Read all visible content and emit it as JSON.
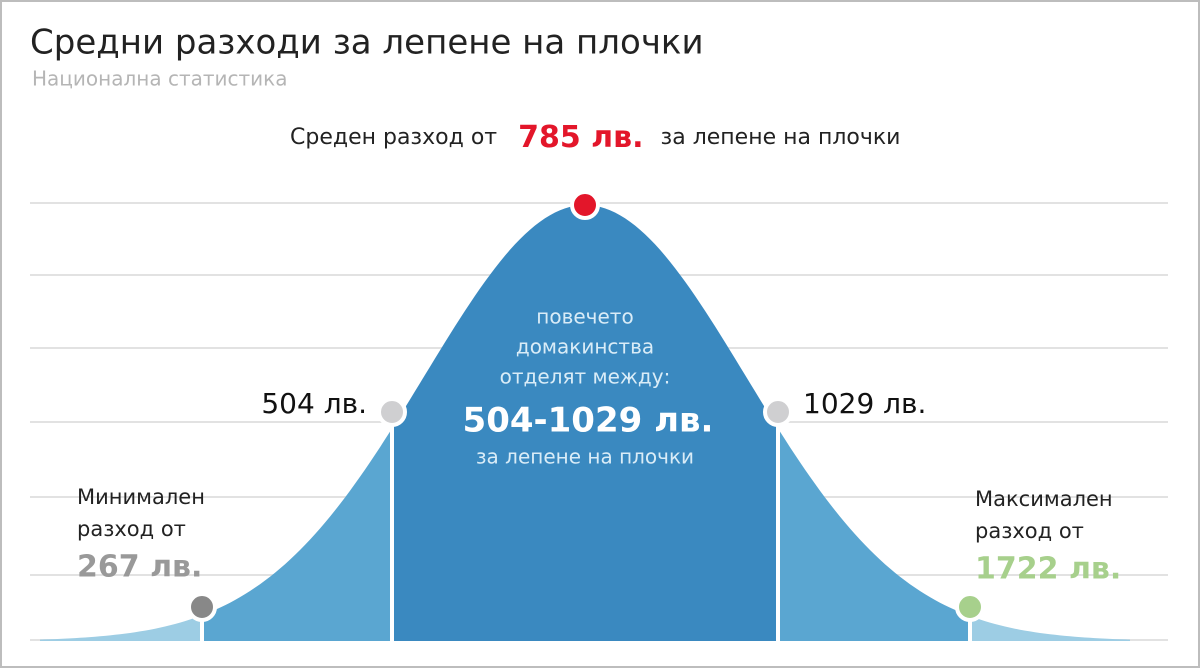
{
  "header": {
    "title": "Средни разходи за лепене на плочки",
    "subtitle": "Национална статистика"
  },
  "average": {
    "prefix": "Среден разход от",
    "value": "785 лв.",
    "suffix": "за лепене на плочки"
  },
  "center": {
    "lines": [
      "повечето",
      "домакинства",
      "отделят между:"
    ],
    "range": "504-1029 лв.",
    "note": "за лепене на плочки"
  },
  "lower": {
    "value": "504 лв."
  },
  "upper": {
    "value": "1029 лв."
  },
  "minimum": {
    "lines": [
      "Минимален",
      "разход от"
    ],
    "value": "267 лв."
  },
  "maximum": {
    "lines": [
      "Максимален",
      "разход от"
    ],
    "value": "1722 лв."
  }
}
